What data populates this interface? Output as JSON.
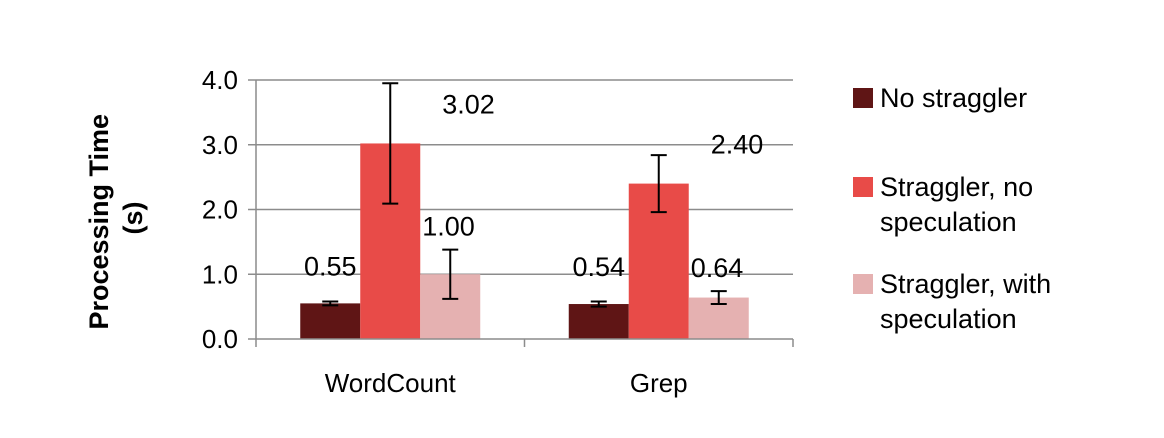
{
  "chart_data": {
    "type": "bar",
    "categories": [
      "WordCount",
      "Grep"
    ],
    "series": [
      {
        "name": "No straggler",
        "color": "#5f1515",
        "values": [
          0.55,
          0.54
        ],
        "errors": [
          0.03,
          0.04
        ],
        "labels": [
          "0.55",
          "0.54"
        ]
      },
      {
        "name": "Straggler, no speculation",
        "color": "#e84b48",
        "values": [
          3.02,
          2.4
        ],
        "errors": [
          0.93,
          0.44
        ],
        "labels": [
          "3.02",
          "2.40"
        ]
      },
      {
        "name": "Straggler, with speculation",
        "color": "#e5b1b1",
        "values": [
          1.0,
          0.64
        ],
        "errors": [
          0.38,
          0.1
        ],
        "labels": [
          "1.00",
          "0.64"
        ]
      }
    ],
    "ylabel": "Processing Time (s)",
    "ylabel_lines": [
      "Processing Time",
      "(s)"
    ],
    "ylim": [
      0,
      4
    ],
    "yticks": [
      0,
      1,
      2,
      3,
      4
    ],
    "ytick_labels": [
      "0.0",
      "1.0",
      "2.0",
      "3.0",
      "4.0"
    ],
    "legend_labels": [
      [
        "No straggler"
      ],
      [
        "Straggler, no",
        "speculation"
      ],
      [
        "Straggler, with",
        "speculation"
      ]
    ],
    "grid": true,
    "legend": "right"
  }
}
